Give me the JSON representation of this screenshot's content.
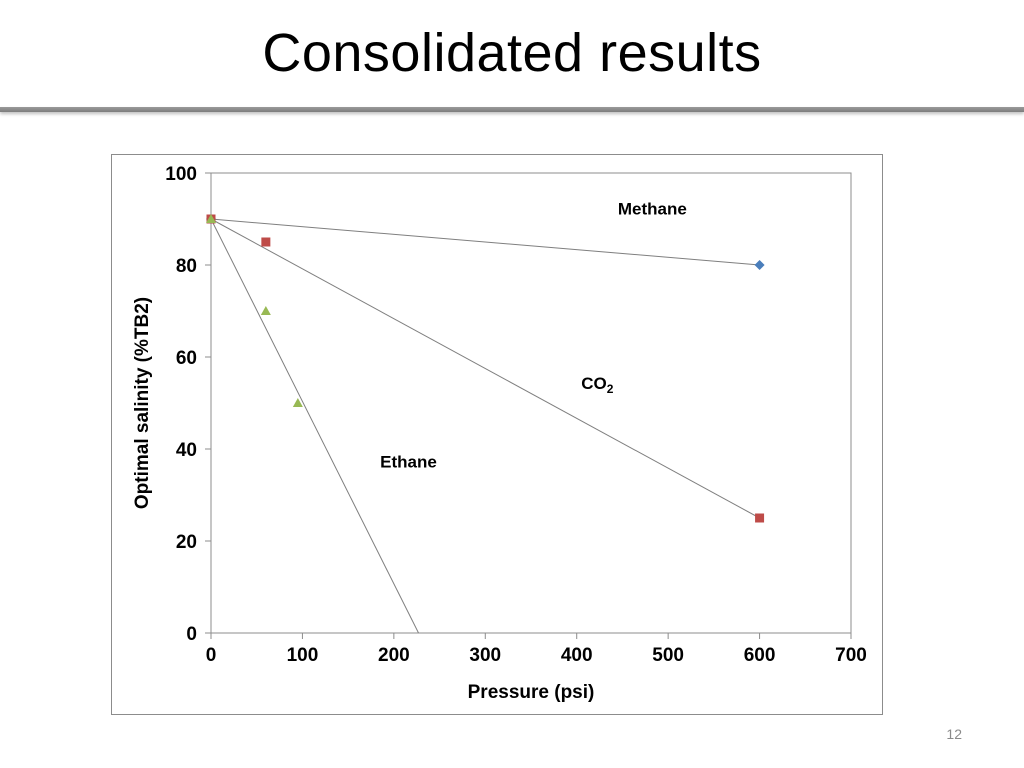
{
  "slide": {
    "title": "Consolidated results",
    "page_number": "12"
  },
  "chart_data": {
    "type": "scatter",
    "xlabel": "Pressure (psi)",
    "ylabel": "Optimal salinity (%TB2)",
    "xlim": [
      0,
      700
    ],
    "ylim": [
      0,
      100
    ],
    "x_ticks": [
      "0",
      "100",
      "200",
      "300",
      "400",
      "500",
      "600",
      "700"
    ],
    "y_ticks": [
      "0",
      "20",
      "40",
      "60",
      "80",
      "100"
    ],
    "grid": false,
    "series": [
      {
        "label": "Methane",
        "label_sub": "",
        "marker": "diamond",
        "color": "#4a7ebb",
        "points": [
          {
            "x": 0,
            "y": 90
          },
          {
            "x": 600,
            "y": 80
          }
        ],
        "fit": [
          {
            "x": 0,
            "y": 90
          },
          {
            "x": 600,
            "y": 80
          }
        ],
        "label_pos": {
          "x": 445,
          "y": 91
        }
      },
      {
        "label": "CO",
        "label_sub": "2",
        "marker": "square",
        "color": "#be4b48",
        "points": [
          {
            "x": 0,
            "y": 90
          },
          {
            "x": 60,
            "y": 85
          },
          {
            "x": 600,
            "y": 25
          }
        ],
        "fit": [
          {
            "x": 0,
            "y": 90
          },
          {
            "x": 600,
            "y": 25
          }
        ],
        "label_pos": {
          "x": 405,
          "y": 53
        }
      },
      {
        "label": "Ethane",
        "label_sub": "",
        "marker": "triangle",
        "color": "#98b954",
        "points": [
          {
            "x": 0,
            "y": 90
          },
          {
            "x": 60,
            "y": 70
          },
          {
            "x": 95,
            "y": 50
          }
        ],
        "fit": [
          {
            "x": 0,
            "y": 90
          },
          {
            "x": 227,
            "y": 0
          }
        ],
        "label_pos": {
          "x": 185,
          "y": 36
        }
      }
    ]
  }
}
